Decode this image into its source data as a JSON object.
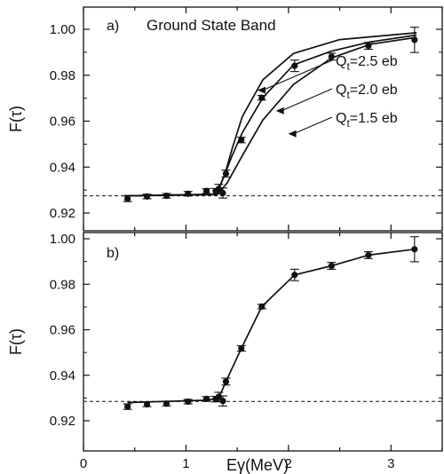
{
  "chart_data": [
    {
      "panel_label": "a)",
      "title": "Ground State Band",
      "type": "line",
      "xlabel": "",
      "ylabel": "F(τ)",
      "xlim": [
        0,
        3.5
      ],
      "ylim": [
        0.92,
        1.01
      ],
      "yticks": [
        "0.92",
        "0.94",
        "0.96",
        "0.98",
        "1.00"
      ],
      "xticks": [],
      "grid": false,
      "reference_line": {
        "y": 0.9275,
        "style": "dashed"
      },
      "measured": {
        "x": [
          0.43,
          0.62,
          0.81,
          1.02,
          1.2,
          1.29,
          1.32,
          1.36,
          1.39,
          1.54,
          1.74,
          2.06,
          2.42,
          2.78,
          3.23
        ],
        "y": [
          0.9262,
          0.9272,
          0.9275,
          0.9284,
          0.9296,
          0.9295,
          0.9305,
          0.9287,
          0.9372,
          0.9518,
          0.9702,
          0.9841,
          0.9881,
          0.9928,
          0.9954
        ],
        "err": [
          0.0012,
          0.001,
          0.001,
          0.001,
          0.001,
          0.0012,
          0.002,
          0.0022,
          0.0015,
          0.0012,
          0.001,
          0.0025,
          0.0015,
          0.0015,
          0.0055
        ]
      },
      "series": [
        {
          "name": "Q",
          "subscript": "t",
          "suffix": "=2.5 eb",
          "x": [
            0.4,
            1.3,
            1.38,
            1.45,
            1.55,
            1.75,
            2.05,
            2.5,
            3.25
          ],
          "y": [
            0.9275,
            0.9282,
            0.937,
            0.948,
            0.962,
            0.978,
            0.9895,
            0.9955,
            0.9985
          ]
        },
        {
          "name": "Q",
          "subscript": "t",
          "suffix": "=2.0 eb",
          "x": [
            0.4,
            1.3,
            1.38,
            1.45,
            1.55,
            1.75,
            2.05,
            2.42,
            2.8,
            3.25
          ],
          "y": [
            0.9275,
            0.9282,
            0.937,
            0.945,
            0.955,
            0.9702,
            0.9845,
            0.9905,
            0.9945,
            0.9975
          ]
        },
        {
          "name": "Q",
          "subscript": "t",
          "suffix": "=1.5 eb",
          "x": [
            0.4,
            1.3,
            1.4,
            1.55,
            1.75,
            2.05,
            2.42,
            2.8,
            3.25
          ],
          "y": [
            0.9275,
            0.928,
            0.933,
            0.945,
            0.9605,
            0.976,
            0.9875,
            0.9935,
            0.9965
          ]
        }
      ]
    },
    {
      "panel_label": "b)",
      "title": "",
      "type": "line",
      "xlabel": "Eγ(MeV)",
      "ylabel": "F(τ)",
      "xlim": [
        0,
        3.5
      ],
      "ylim": [
        0.92,
        1.01
      ],
      "yticks": [
        "0.92",
        "0.94",
        "0.96",
        "0.98",
        "1.00"
      ],
      "xticks": [
        "0",
        "1",
        "2",
        "3"
      ],
      "grid": false,
      "reference_line": {
        "y": 0.9285,
        "style": "dashed"
      },
      "measured": {
        "x": [
          0.43,
          0.62,
          0.81,
          1.02,
          1.2,
          1.29,
          1.32,
          1.36,
          1.39,
          1.54,
          1.74,
          2.06,
          2.42,
          2.78,
          3.23
        ],
        "y": [
          0.9262,
          0.9272,
          0.9275,
          0.9284,
          0.9296,
          0.9295,
          0.9305,
          0.9287,
          0.9372,
          0.9518,
          0.9702,
          0.9841,
          0.9881,
          0.9928,
          0.9954
        ],
        "err": [
          0.0012,
          0.001,
          0.001,
          0.001,
          0.001,
          0.0012,
          0.002,
          0.0022,
          0.0015,
          0.0012,
          0.001,
          0.0025,
          0.0015,
          0.0015,
          0.0055
        ]
      },
      "series": [
        {
          "name": "",
          "x": [
            0.43,
            1.2,
            1.32,
            1.39,
            1.54,
            1.74,
            2.06,
            2.42,
            2.78,
            3.23
          ],
          "y": [
            0.928,
            0.929,
            0.93,
            0.9372,
            0.9518,
            0.9702,
            0.9841,
            0.9881,
            0.9928,
            0.9954
          ]
        }
      ]
    }
  ]
}
